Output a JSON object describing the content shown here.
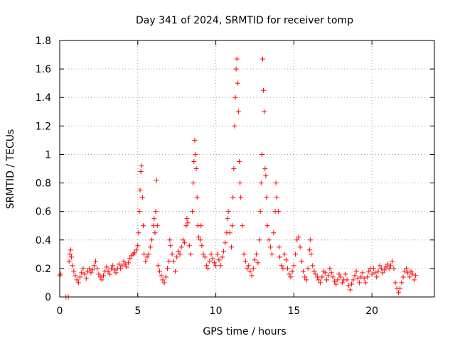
{
  "chart_data": {
    "type": "scatter",
    "title": "Day 341 of 2024, SRMTID for receiver tomp",
    "xlabel": "GPS time / hours",
    "ylabel": "SRMTID / TECUs",
    "xlim": [
      0,
      24
    ],
    "ylim": [
      0,
      1.8
    ],
    "x_ticks": [
      0,
      5,
      10,
      15,
      20
    ],
    "x_tick_labels": [
      "0",
      "5",
      "10",
      "15",
      "20"
    ],
    "y_ticks": [
      0,
      0.2,
      0.4,
      0.6,
      0.8,
      1.0,
      1.2,
      1.4,
      1.6,
      1.8
    ],
    "y_tick_labels": [
      "0",
      "0.2",
      "0.4",
      "0.6",
      "0.8",
      "1",
      "1.2",
      "1.4",
      "1.6",
      "1.8"
    ],
    "grid": true,
    "marker": "+",
    "color": "#ff0000",
    "series": [
      {
        "name": "SRMTID",
        "points": [
          [
            0.0,
            0.15
          ],
          [
            0.05,
            0.16
          ],
          [
            0.4,
            0.0
          ],
          [
            0.55,
            0.0
          ],
          [
            0.6,
            0.25
          ],
          [
            0.65,
            0.3
          ],
          [
            0.7,
            0.33
          ],
          [
            0.75,
            0.28
          ],
          [
            0.8,
            0.22
          ],
          [
            0.9,
            0.18
          ],
          [
            1.0,
            0.15
          ],
          [
            1.1,
            0.12
          ],
          [
            1.2,
            0.1
          ],
          [
            1.3,
            0.14
          ],
          [
            1.4,
            0.17
          ],
          [
            1.5,
            0.2
          ],
          [
            1.6,
            0.16
          ],
          [
            1.7,
            0.13
          ],
          [
            1.8,
            0.18
          ],
          [
            1.9,
            0.2
          ],
          [
            2.0,
            0.17
          ],
          [
            2.1,
            0.19
          ],
          [
            2.2,
            0.22
          ],
          [
            2.3,
            0.25
          ],
          [
            2.4,
            0.2
          ],
          [
            2.5,
            0.16
          ],
          [
            2.6,
            0.14
          ],
          [
            2.7,
            0.12
          ],
          [
            2.8,
            0.15
          ],
          [
            2.9,
            0.18
          ],
          [
            3.0,
            0.21
          ],
          [
            3.1,
            0.18
          ],
          [
            3.2,
            0.16
          ],
          [
            3.3,
            0.2
          ],
          [
            3.4,
            0.22
          ],
          [
            3.5,
            0.19
          ],
          [
            3.6,
            0.17
          ],
          [
            3.7,
            0.2
          ],
          [
            3.8,
            0.23
          ],
          [
            3.9,
            0.2
          ],
          [
            4.0,
            0.22
          ],
          [
            4.1,
            0.25
          ],
          [
            4.2,
            0.23
          ],
          [
            4.3,
            0.21
          ],
          [
            4.4,
            0.24
          ],
          [
            4.5,
            0.27
          ],
          [
            4.6,
            0.29
          ],
          [
            4.7,
            0.3
          ],
          [
            4.8,
            0.31
          ],
          [
            4.9,
            0.33
          ],
          [
            5.0,
            0.36
          ],
          [
            5.05,
            0.45
          ],
          [
            5.1,
            0.6
          ],
          [
            5.15,
            0.75
          ],
          [
            5.2,
            0.88
          ],
          [
            5.25,
            0.92
          ],
          [
            5.3,
            0.7
          ],
          [
            5.35,
            0.5
          ],
          [
            5.4,
            0.3
          ],
          [
            5.5,
            0.25
          ],
          [
            5.6,
            0.28
          ],
          [
            5.7,
            0.3
          ],
          [
            5.8,
            0.35
          ],
          [
            5.9,
            0.4
          ],
          [
            6.0,
            0.5
          ],
          [
            6.05,
            0.55
          ],
          [
            6.1,
            0.45
          ],
          [
            6.15,
            0.6
          ],
          [
            6.2,
            0.82
          ],
          [
            6.25,
            0.5
          ],
          [
            6.3,
            0.22
          ],
          [
            6.4,
            0.18
          ],
          [
            6.5,
            0.15
          ],
          [
            6.6,
            0.12
          ],
          [
            6.7,
            0.1
          ],
          [
            6.8,
            0.14
          ],
          [
            6.9,
            0.2
          ],
          [
            7.0,
            0.25
          ],
          [
            7.05,
            0.4
          ],
          [
            7.1,
            0.36
          ],
          [
            7.2,
            0.3
          ],
          [
            7.3,
            0.25
          ],
          [
            7.4,
            0.18
          ],
          [
            7.5,
            0.28
          ],
          [
            7.6,
            0.32
          ],
          [
            7.7,
            0.3
          ],
          [
            7.8,
            0.35
          ],
          [
            7.9,
            0.4
          ],
          [
            8.0,
            0.38
          ],
          [
            8.1,
            0.5
          ],
          [
            8.15,
            0.55
          ],
          [
            8.2,
            0.52
          ],
          [
            8.3,
            0.36
          ],
          [
            8.4,
            0.3
          ],
          [
            8.5,
            0.6
          ],
          [
            8.55,
            0.8
          ],
          [
            8.6,
            0.95
          ],
          [
            8.65,
            1.1
          ],
          [
            8.7,
            1.0
          ],
          [
            8.75,
            0.9
          ],
          [
            8.8,
            0.7
          ],
          [
            8.85,
            0.5
          ],
          [
            8.9,
            0.42
          ],
          [
            9.0,
            0.4
          ],
          [
            9.05,
            0.5
          ],
          [
            9.1,
            0.36
          ],
          [
            9.2,
            0.3
          ],
          [
            9.3,
            0.28
          ],
          [
            9.4,
            0.22
          ],
          [
            9.5,
            0.2
          ],
          [
            9.6,
            0.25
          ],
          [
            9.7,
            0.3
          ],
          [
            9.8,
            0.27
          ],
          [
            9.9,
            0.24
          ],
          [
            10.0,
            0.22
          ],
          [
            10.1,
            0.3
          ],
          [
            10.2,
            0.26
          ],
          [
            10.3,
            0.22
          ],
          [
            10.4,
            0.28
          ],
          [
            10.5,
            0.32
          ],
          [
            10.6,
            0.38
          ],
          [
            10.7,
            0.45
          ],
          [
            10.75,
            0.55
          ],
          [
            10.8,
            0.6
          ],
          [
            10.9,
            0.45
          ],
          [
            11.0,
            0.35
          ],
          [
            11.05,
            0.5
          ],
          [
            11.1,
            0.7
          ],
          [
            11.15,
            0.9
          ],
          [
            11.2,
            1.2
          ],
          [
            11.25,
            1.4
          ],
          [
            11.3,
            1.6
          ],
          [
            11.35,
            1.67
          ],
          [
            11.4,
            1.5
          ],
          [
            11.45,
            1.3
          ],
          [
            11.5,
            0.95
          ],
          [
            11.55,
            0.8
          ],
          [
            11.6,
            0.7
          ],
          [
            11.7,
            0.5
          ],
          [
            11.8,
            0.3
          ],
          [
            11.9,
            0.25
          ],
          [
            12.0,
            0.2
          ],
          [
            12.1,
            0.22
          ],
          [
            12.2,
            0.18
          ],
          [
            12.3,
            0.15
          ],
          [
            12.4,
            0.2
          ],
          [
            12.5,
            0.26
          ],
          [
            12.6,
            0.3
          ],
          [
            12.7,
            0.24
          ],
          [
            12.8,
            0.4
          ],
          [
            12.85,
            0.6
          ],
          [
            12.9,
            0.8
          ],
          [
            12.95,
            1.0
          ],
          [
            13.0,
            1.67
          ],
          [
            13.05,
            1.45
          ],
          [
            13.1,
            1.3
          ],
          [
            13.15,
            0.9
          ],
          [
            13.2,
            0.85
          ],
          [
            13.25,
            0.7
          ],
          [
            13.3,
            0.5
          ],
          [
            13.4,
            0.4
          ],
          [
            13.5,
            0.35
          ],
          [
            13.6,
            0.3
          ],
          [
            13.7,
            0.45
          ],
          [
            13.8,
            0.6
          ],
          [
            13.85,
            0.8
          ],
          [
            13.9,
            0.7
          ],
          [
            14.0,
            0.6
          ],
          [
            14.05,
            0.35
          ],
          [
            14.1,
            0.28
          ],
          [
            14.2,
            0.22
          ],
          [
            14.3,
            0.2
          ],
          [
            14.4,
            0.3
          ],
          [
            14.5,
            0.26
          ],
          [
            14.6,
            0.2
          ],
          [
            14.7,
            0.16
          ],
          [
            14.8,
            0.14
          ],
          [
            14.9,
            0.18
          ],
          [
            15.0,
            0.22
          ],
          [
            15.1,
            0.3
          ],
          [
            15.2,
            0.4
          ],
          [
            15.3,
            0.42
          ],
          [
            15.4,
            0.35
          ],
          [
            15.5,
            0.25
          ],
          [
            15.6,
            0.18
          ],
          [
            15.7,
            0.14
          ],
          [
            15.8,
            0.12
          ],
          [
            15.9,
            0.2
          ],
          [
            16.0,
            0.33
          ],
          [
            16.05,
            0.4
          ],
          [
            16.1,
            0.3
          ],
          [
            16.2,
            0.22
          ],
          [
            16.3,
            0.18
          ],
          [
            16.4,
            0.16
          ],
          [
            16.5,
            0.14
          ],
          [
            16.6,
            0.12
          ],
          [
            16.7,
            0.1
          ],
          [
            16.8,
            0.14
          ],
          [
            16.9,
            0.18
          ],
          [
            17.0,
            0.17
          ],
          [
            17.1,
            0.12
          ],
          [
            17.2,
            0.15
          ],
          [
            17.3,
            0.2
          ],
          [
            17.4,
            0.17
          ],
          [
            17.5,
            0.14
          ],
          [
            17.6,
            0.11
          ],
          [
            17.7,
            0.09
          ],
          [
            17.8,
            0.12
          ],
          [
            17.9,
            0.16
          ],
          [
            18.0,
            0.14
          ],
          [
            18.1,
            0.1
          ],
          [
            18.2,
            0.12
          ],
          [
            18.3,
            0.16
          ],
          [
            18.4,
            0.12
          ],
          [
            18.5,
            0.08
          ],
          [
            18.6,
            0.05
          ],
          [
            18.7,
            0.09
          ],
          [
            18.8,
            0.12
          ],
          [
            18.9,
            0.15
          ],
          [
            19.0,
            0.18
          ],
          [
            19.1,
            0.13
          ],
          [
            19.2,
            0.1
          ],
          [
            19.3,
            0.14
          ],
          [
            19.4,
            0.17
          ],
          [
            19.5,
            0.13
          ],
          [
            19.6,
            0.1
          ],
          [
            19.7,
            0.14
          ],
          [
            19.8,
            0.18
          ],
          [
            19.9,
            0.2
          ],
          [
            20.0,
            0.16
          ],
          [
            20.1,
            0.2
          ],
          [
            20.2,
            0.17
          ],
          [
            20.3,
            0.14
          ],
          [
            20.4,
            0.18
          ],
          [
            20.5,
            0.22
          ],
          [
            20.6,
            0.2
          ],
          [
            20.7,
            0.17
          ],
          [
            20.8,
            0.19
          ],
          [
            20.9,
            0.21
          ],
          [
            21.0,
            0.23
          ],
          [
            21.1,
            0.2
          ],
          [
            21.2,
            0.22
          ],
          [
            21.3,
            0.25
          ],
          [
            21.4,
            0.2
          ],
          [
            21.5,
            0.1
          ],
          [
            21.6,
            0.06
          ],
          [
            21.7,
            0.03
          ],
          [
            21.8,
            0.06
          ],
          [
            21.9,
            0.1
          ],
          [
            22.0,
            0.14
          ],
          [
            22.1,
            0.18
          ],
          [
            22.2,
            0.2
          ],
          [
            22.3,
            0.17
          ],
          [
            22.4,
            0.14
          ],
          [
            22.5,
            0.18
          ],
          [
            22.6,
            0.16
          ],
          [
            22.7,
            0.12
          ],
          [
            22.8,
            0.15
          ]
        ]
      }
    ]
  }
}
